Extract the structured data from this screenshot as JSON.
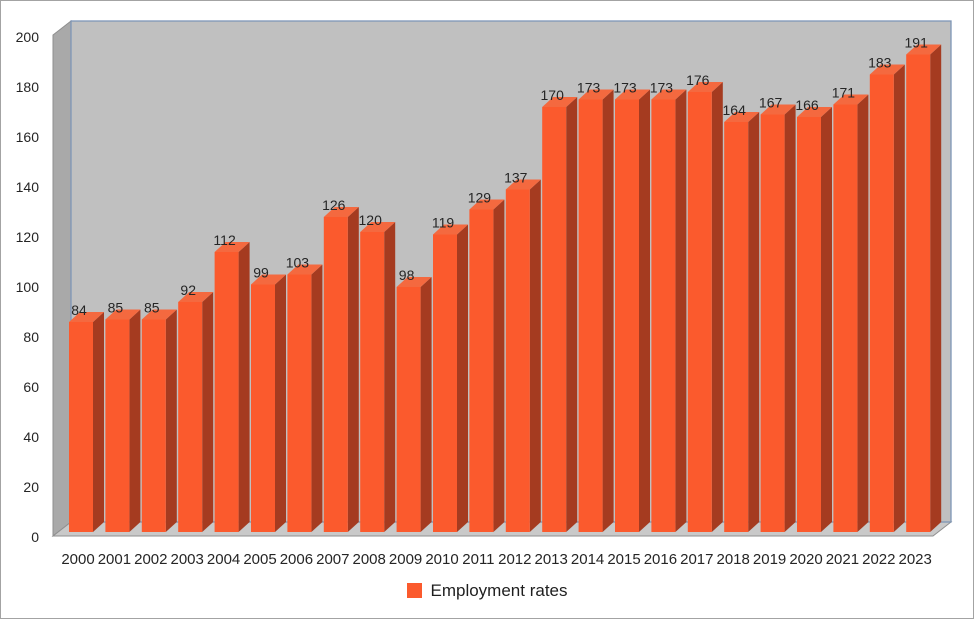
{
  "chart_data": {
    "type": "bar",
    "style": "3d-column",
    "title": "",
    "legend_label": "Employment rates",
    "legend_position": "bottom",
    "categories": [
      "2000",
      "2001",
      "2002",
      "2003",
      "2004",
      "2005",
      "2006",
      "2007",
      "2008",
      "2009",
      "2010",
      "2011",
      "2012",
      "2013",
      "2014",
      "2015",
      "2016",
      "2017",
      "2018",
      "2019",
      "2020",
      "2021",
      "2022",
      "2023"
    ],
    "series": [
      {
        "name": "Employment rates",
        "values": [
          84,
          85,
          85,
          92,
          112,
          99,
          103,
          126,
          120,
          98,
          119,
          129,
          137,
          170,
          173,
          173,
          173,
          176,
          164,
          167,
          166,
          171,
          183,
          191
        ]
      }
    ],
    "data_labels": true,
    "grid": false,
    "ylabel": "",
    "xlabel": "",
    "ylim": [
      0,
      200
    ],
    "ytick_step": 20,
    "yticks": [
      0,
      20,
      40,
      60,
      80,
      100,
      120,
      140,
      160,
      180,
      200
    ],
    "colors": {
      "bar_front": "#FB5A2D",
      "bar_side": "#A53B20",
      "bar_top": "#F4693F",
      "back_wall": "#C0C0C0",
      "side_wall": "#A9A9A9",
      "floor": "#C9C9C9",
      "wall_border": "#7E96B6",
      "wall_edge": "#8F8F8F",
      "axis_text": "#252525",
      "label_text": "#252525",
      "legend_text": "#1F1F1F",
      "chart_border": "#A3A3A3",
      "background": "#FFFFFF"
    }
  }
}
